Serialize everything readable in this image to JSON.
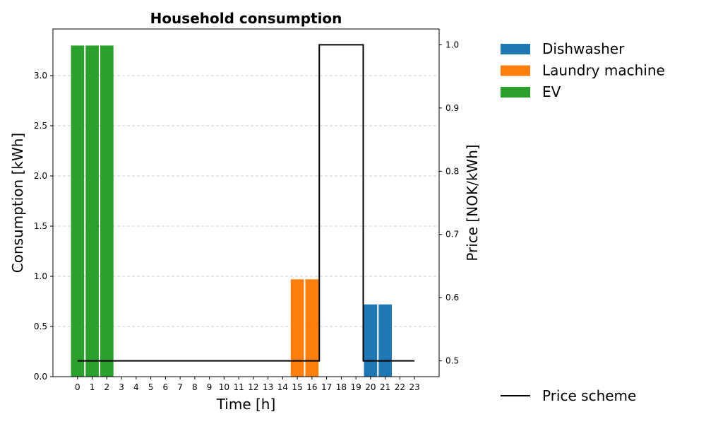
{
  "chart_data": {
    "type": "bar",
    "title": "Household consumption",
    "xlabel": "Time [h]",
    "ylabel": "Consumption [kWh]",
    "y2label": "Price [NOK/kWh]",
    "categories": [
      "0",
      "1",
      "2",
      "3",
      "4",
      "5",
      "6",
      "7",
      "8",
      "9",
      "10",
      "11",
      "12",
      "13",
      "14",
      "15",
      "16",
      "17",
      "18",
      "19",
      "20",
      "21",
      "22",
      "23"
    ],
    "ylim": [
      0,
      3.465
    ],
    "y2lim": [
      0.475,
      1.025
    ],
    "yticks": [
      "0.0",
      "0.5",
      "1.0",
      "1.5",
      "2.0",
      "2.5",
      "3.0"
    ],
    "y2ticks": [
      "0.5",
      "0.6",
      "0.7",
      "0.8",
      "0.9",
      "1.0"
    ],
    "grid": "horizontal dashed",
    "legend_position": "right of plot",
    "series": [
      {
        "name": "Dishwasher",
        "color": "#1f77b4",
        "values": [
          0,
          0,
          0,
          0,
          0,
          0,
          0,
          0,
          0,
          0,
          0,
          0,
          0,
          0,
          0,
          0,
          0,
          0,
          0,
          0,
          0.72,
          0.72,
          0,
          0
        ]
      },
      {
        "name": "Laundry machine",
        "color": "#ff7f0e",
        "values": [
          0,
          0,
          0,
          0,
          0,
          0,
          0,
          0,
          0,
          0,
          0,
          0,
          0,
          0,
          0,
          0.97,
          0.97,
          0,
          0,
          0,
          0,
          0,
          0,
          0
        ]
      },
      {
        "name": "EV",
        "color": "#2ca02c",
        "values": [
          3.3,
          3.3,
          3.3,
          0,
          0,
          0,
          0,
          0,
          0,
          0,
          0,
          0,
          0,
          0,
          0,
          0,
          0,
          0,
          0,
          0,
          0,
          0,
          0,
          0
        ]
      }
    ],
    "price_line": {
      "name": "Price scheme",
      "color": "#000000",
      "values": [
        0.5,
        0.5,
        0.5,
        0.5,
        0.5,
        0.5,
        0.5,
        0.5,
        0.5,
        0.5,
        0.5,
        0.5,
        0.5,
        0.5,
        0.5,
        0.5,
        0.5,
        1.0,
        1.0,
        1.0,
        0.5,
        0.5,
        0.5,
        0.5
      ]
    }
  }
}
